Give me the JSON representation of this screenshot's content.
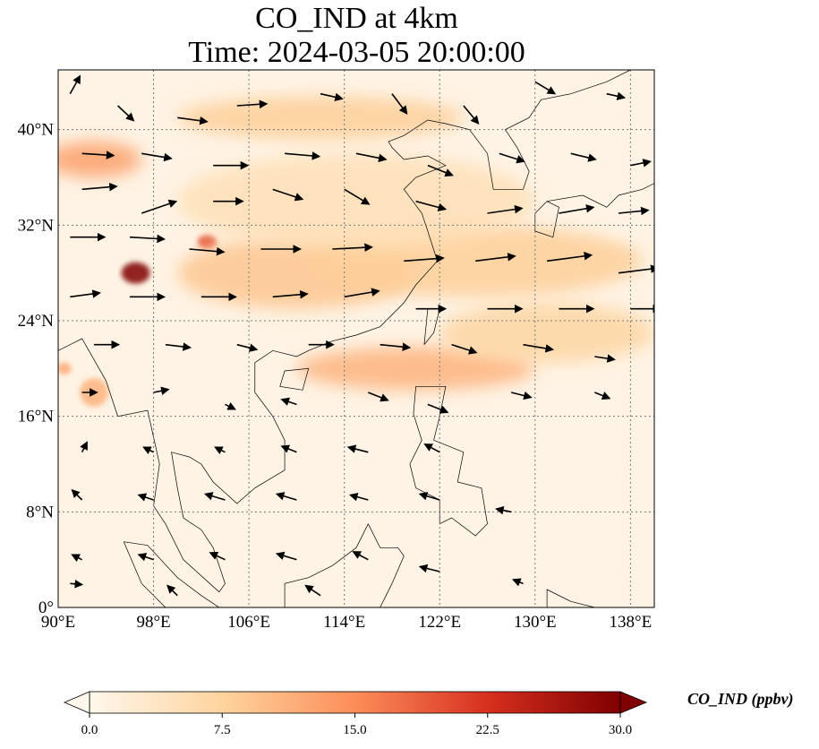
{
  "chart_data": {
    "type": "heatmap",
    "title": "CO_IND at 4km",
    "subtitle": "Time: 2024-03-05 20:00:00",
    "xlim": [
      90,
      140
    ],
    "ylim": [
      0,
      45
    ],
    "xticks": [
      90,
      98,
      106,
      114,
      122,
      130,
      138
    ],
    "xtick_labels": [
      "90°E",
      "98°E",
      "106°E",
      "114°E",
      "122°E",
      "130°E",
      "138°E"
    ],
    "yticks": [
      0,
      8,
      16,
      24,
      32,
      40
    ],
    "ytick_labels": [
      "0°",
      "8°N",
      "16°N",
      "24°N",
      "32°N",
      "40°N"
    ],
    "grid": true,
    "colorbar": {
      "label": "CO_IND (ppbv)",
      "range": [
        0,
        30
      ],
      "ticks": [
        0,
        7.5,
        15,
        22.5,
        30
      ],
      "tick_labels": [
        "0.0",
        "7.5",
        "15.0",
        "22.5",
        "30.0"
      ],
      "colormap": "OrRd",
      "colors": [
        "#fff7ec",
        "#fdd49e",
        "#fc8d59",
        "#d7301f",
        "#7f0000"
      ],
      "extend": "both",
      "orientation": "horizontal"
    },
    "plumes": [
      {
        "lon": 96.5,
        "lat": 28.0,
        "value": 30,
        "rlon": 1.2,
        "rlat": 0.9
      },
      {
        "lon": 102.5,
        "lat": 30.6,
        "value": 20,
        "rlon": 0.8,
        "rlat": 0.6
      },
      {
        "lon": 93,
        "lat": 37.5,
        "value": 13,
        "rlon": 4,
        "rlat": 1.5
      },
      {
        "lon": 112,
        "lat": 41,
        "value": 8,
        "rlon": 12,
        "rlat": 1.8
      },
      {
        "lon": 110,
        "lat": 28,
        "value": 9,
        "rlon": 10,
        "rlat": 3
      },
      {
        "lon": 125,
        "lat": 29,
        "value": 8,
        "rlon": 14,
        "rlat": 3
      },
      {
        "lon": 120,
        "lat": 20,
        "value": 11,
        "rlon": 10,
        "rlat": 1.8
      },
      {
        "lon": 131,
        "lat": 23,
        "value": 7,
        "rlon": 9,
        "rlat": 2.5
      },
      {
        "lon": 93,
        "lat": 18,
        "value": 11,
        "rlon": 1.2,
        "rlat": 1.2
      },
      {
        "lon": 90.5,
        "lat": 20,
        "value": 12,
        "rlon": 0.6,
        "rlat": 0.5
      },
      {
        "lon": 115,
        "lat": 34,
        "value": 5,
        "rlon": 15,
        "rlat": 4
      }
    ],
    "wind_vectors": [
      [
        91,
        43,
        1,
        1.8
      ],
      [
        95,
        42,
        1.6,
        -1.5
      ],
      [
        100,
        41,
        3,
        -0.4
      ],
      [
        105,
        42,
        3,
        0.2
      ],
      [
        112,
        43,
        2.2,
        -0.5
      ],
      [
        118,
        43,
        1.5,
        -2
      ],
      [
        124,
        42,
        1.5,
        -1.8
      ],
      [
        130,
        44,
        2,
        -1.2
      ],
      [
        136,
        43,
        1.8,
        -0.4
      ],
      [
        92,
        38,
        3.2,
        -0.2
      ],
      [
        97,
        38,
        3,
        -0.5
      ],
      [
        103,
        37,
        3.5,
        0
      ],
      [
        109,
        38,
        3.5,
        -0.3
      ],
      [
        115,
        38,
        3,
        -0.6
      ],
      [
        121,
        37,
        2.5,
        -1
      ],
      [
        127,
        38,
        2.5,
        -0.8
      ],
      [
        133,
        38,
        2.5,
        -0.6
      ],
      [
        138,
        37,
        2,
        0.4
      ],
      [
        92,
        35,
        3.5,
        0.3
      ],
      [
        97,
        33,
        3.5,
        1.2
      ],
      [
        103,
        34,
        3,
        0
      ],
      [
        108,
        35,
        3,
        -1
      ],
      [
        114,
        35,
        2.5,
        -1.5
      ],
      [
        120,
        34,
        3,
        -0.8
      ],
      [
        126,
        33,
        3.5,
        0.5
      ],
      [
        132,
        33,
        3.5,
        0.6
      ],
      [
        137,
        33,
        3,
        0.3
      ],
      [
        91,
        31,
        3.5,
        0
      ],
      [
        96,
        31,
        3.5,
        -0.2
      ],
      [
        101,
        30,
        3.5,
        -0.3
      ],
      [
        107,
        30,
        4,
        0
      ],
      [
        113,
        30,
        4,
        0.2
      ],
      [
        119,
        29,
        4,
        0.3
      ],
      [
        125,
        29,
        4,
        0.5
      ],
      [
        131,
        29,
        4.5,
        0.6
      ],
      [
        137,
        28,
        4,
        0.5
      ],
      [
        91,
        26,
        3,
        0.4
      ],
      [
        96,
        26,
        3.5,
        0
      ],
      [
        102,
        26,
        3.5,
        0
      ],
      [
        108,
        26,
        3.5,
        0.3
      ],
      [
        114,
        26,
        3.5,
        0.6
      ],
      [
        120,
        25,
        3,
        0
      ],
      [
        126,
        25,
        3.5,
        0
      ],
      [
        132,
        25,
        3.5,
        0
      ],
      [
        138,
        25,
        3,
        0
      ],
      [
        93,
        22,
        2.5,
        0
      ],
      [
        99,
        22,
        2.5,
        -0.3
      ],
      [
        105,
        22,
        2,
        -0.5
      ],
      [
        111,
        22,
        2.5,
        0
      ],
      [
        117,
        22,
        3,
        -0.3
      ],
      [
        123,
        22,
        2.5,
        -0.8
      ],
      [
        129,
        22,
        3,
        -0.5
      ],
      [
        135,
        21,
        2,
        -0.3
      ],
      [
        92,
        18,
        1.5,
        0
      ],
      [
        98,
        18,
        1.5,
        0.3
      ],
      [
        104,
        17,
        1,
        -0.5
      ],
      [
        110,
        17,
        -1.5,
        0.5
      ],
      [
        116,
        18,
        2,
        -0.8
      ],
      [
        121,
        17,
        2,
        -0.8
      ],
      [
        128,
        18,
        2,
        -0.5
      ],
      [
        135,
        18,
        1.5,
        -0.6
      ],
      [
        92,
        13,
        0.5,
        1
      ],
      [
        98,
        13,
        -1,
        0.5
      ],
      [
        104,
        13,
        -1,
        0.5
      ],
      [
        110,
        13,
        -1.5,
        0.6
      ],
      [
        116,
        13,
        -2,
        0.5
      ],
      [
        122,
        13,
        -1.5,
        0.8
      ],
      [
        92,
        9,
        -1,
        1
      ],
      [
        98,
        9,
        -1.5,
        0.5
      ],
      [
        104,
        9,
        -2,
        0.6
      ],
      [
        110,
        9,
        -2,
        0.6
      ],
      [
        116,
        9,
        -1.8,
        0.5
      ],
      [
        122,
        9,
        -2,
        0.6
      ],
      [
        128,
        8,
        -1.5,
        0.3
      ],
      [
        92,
        4,
        -1,
        0.5
      ],
      [
        98,
        4,
        -1.5,
        0.5
      ],
      [
        104,
        4,
        -1.5,
        0.7
      ],
      [
        110,
        4,
        -2,
        0.6
      ],
      [
        116,
        4,
        -1.5,
        0.8
      ],
      [
        122,
        3,
        -2,
        0.5
      ],
      [
        129,
        2,
        -1,
        0.4
      ],
      [
        91,
        2,
        1.2,
        -0.1
      ],
      [
        100,
        1,
        -1,
        1
      ],
      [
        112,
        1,
        -1.5,
        1
      ]
    ],
    "coastlines": [
      [
        [
          90,
          21.5
        ],
        [
          92,
          22.5
        ],
        [
          94,
          19
        ],
        [
          95,
          16
        ],
        [
          97.5,
          16.5
        ],
        [
          98.5,
          12
        ],
        [
          98,
          8.5
        ],
        [
          99,
          7
        ],
        [
          100.5,
          4
        ],
        [
          103.5,
          1.3
        ],
        [
          104,
          2
        ],
        [
          103,
          5
        ],
        [
          102,
          6.5
        ],
        [
          100.5,
          7.5
        ],
        [
          100,
          10
        ],
        [
          99.5,
          13
        ],
        [
          101,
          12.6
        ],
        [
          102,
          12
        ],
        [
          103,
          10.5
        ],
        [
          105,
          8.7
        ],
        [
          106.5,
          10
        ],
        [
          109,
          11.5
        ],
        [
          109,
          14
        ],
        [
          108,
          16
        ],
        [
          106.5,
          18
        ],
        [
          106.5,
          20.5
        ],
        [
          108,
          21.5
        ],
        [
          110,
          21
        ],
        [
          111,
          21.5
        ],
        [
          113,
          22.3
        ],
        [
          115,
          22.8
        ],
        [
          117,
          23.5
        ],
        [
          119,
          25.5
        ],
        [
          120,
          27
        ],
        [
          121.8,
          29
        ],
        [
          121,
          31.5
        ],
        [
          120.5,
          33
        ],
        [
          119,
          35
        ],
        [
          120,
          36
        ],
        [
          122.5,
          37
        ],
        [
          121,
          37.8
        ],
        [
          119,
          37.5
        ],
        [
          118,
          38.5
        ],
        [
          117.7,
          39
        ],
        [
          119,
          39.5
        ],
        [
          121,
          40.8
        ],
        [
          122.5,
          40.5
        ],
        [
          124.5,
          40
        ],
        [
          126,
          38
        ],
        [
          126.5,
          35
        ],
        [
          129,
          35
        ],
        [
          129.5,
          36.5
        ],
        [
          128.5,
          38.5
        ],
        [
          127.5,
          40
        ],
        [
          129.5,
          41
        ],
        [
          130.5,
          42.5
        ],
        [
          133,
          43
        ],
        [
          136,
          44
        ],
        [
          138,
          45
        ]
      ],
      [
        [
          120.7,
          22
        ],
        [
          121,
          25
        ],
        [
          122,
          25
        ],
        [
          121.5,
          23
        ],
        [
          120.7,
          22
        ]
      ],
      [
        [
          110.5,
          18.2
        ],
        [
          111,
          20
        ],
        [
          109,
          19.8
        ],
        [
          108.6,
          18.5
        ],
        [
          110.5,
          18.2
        ]
      ],
      [
        [
          130,
          31.5
        ],
        [
          131.5,
          31
        ],
        [
          132,
          33.5
        ],
        [
          131,
          34
        ],
        [
          130,
          33
        ],
        [
          130,
          31.5
        ]
      ],
      [
        [
          131,
          34
        ],
        [
          134,
          34.5
        ],
        [
          136,
          33.5
        ],
        [
          137,
          34.5
        ],
        [
          139,
          35
        ],
        [
          140,
          35.5
        ]
      ],
      [
        [
          120,
          18.5
        ],
        [
          122.5,
          18.5
        ],
        [
          122,
          16
        ],
        [
          121.5,
          14
        ],
        [
          124,
          13
        ],
        [
          123.5,
          10.5
        ],
        [
          125.5,
          10
        ],
        [
          126,
          7
        ],
        [
          125,
          6
        ],
        [
          123,
          7.5
        ],
        [
          122,
          7
        ],
        [
          122,
          9
        ],
        [
          120,
          10
        ],
        [
          119.5,
          12
        ],
        [
          120.5,
          14
        ],
        [
          119.8,
          16.2
        ],
        [
          120,
          18.5
        ]
      ],
      [
        [
          116,
          7
        ],
        [
          117,
          5
        ],
        [
          118.5,
          5
        ],
        [
          119,
          4.3
        ],
        [
          118,
          2
        ],
        [
          117.5,
          1
        ],
        [
          117,
          0
        ],
        [
          109,
          0
        ],
        [
          109,
          2
        ],
        [
          111,
          2.5
        ],
        [
          113,
          3.5
        ],
        [
          115,
          5
        ],
        [
          116,
          7
        ]
      ],
      [
        [
          95.5,
          5.5
        ],
        [
          97.5,
          5.2
        ],
        [
          100,
          2.5
        ],
        [
          102,
          1
        ],
        [
          103.5,
          0
        ],
        [
          99,
          0
        ],
        [
          97,
          2
        ],
        [
          95.5,
          5.5
        ]
      ],
      [
        [
          131,
          0
        ],
        [
          131,
          1.5
        ],
        [
          133,
          0.5
        ],
        [
          135,
          0
        ],
        [
          131,
          0
        ]
      ]
    ]
  }
}
